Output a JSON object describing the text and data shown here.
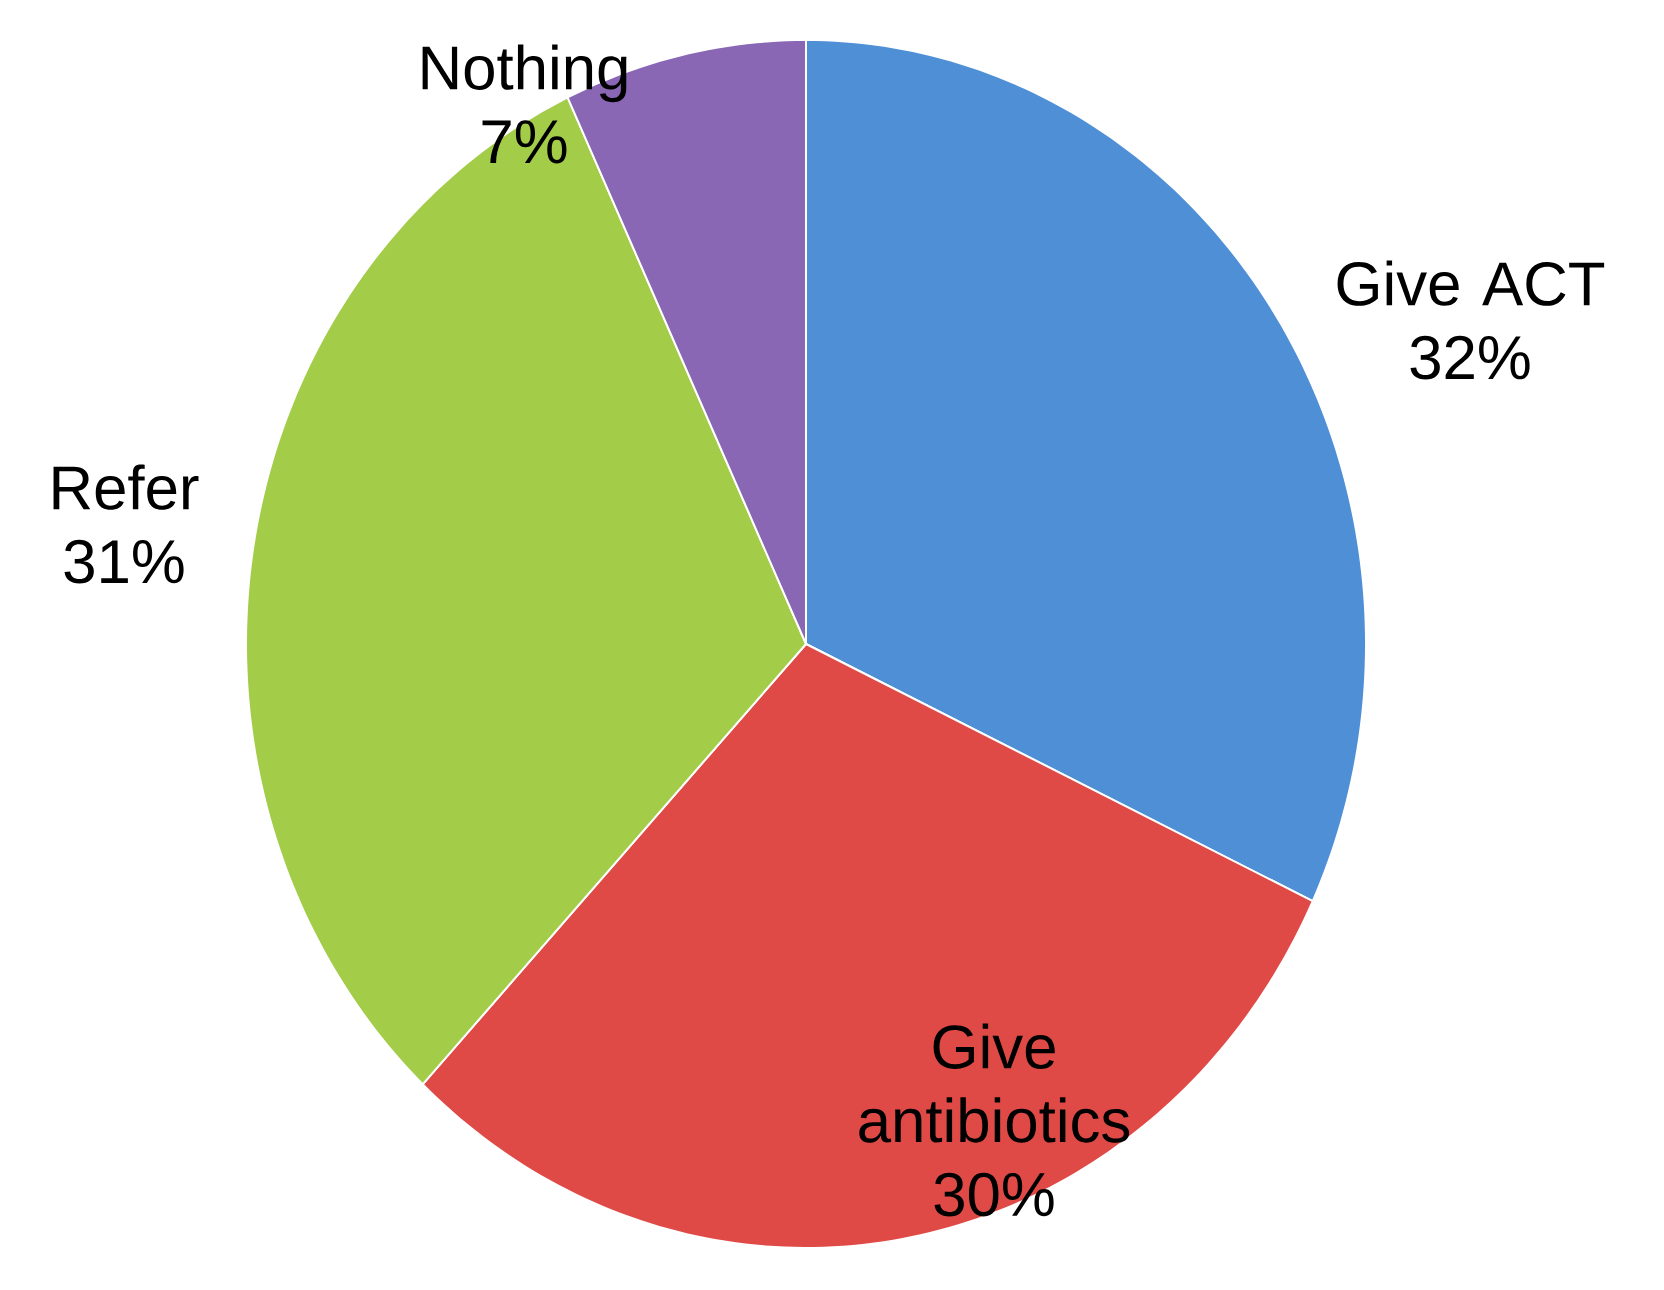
{
  "chart_data": {
    "type": "pie",
    "categories": [
      "Give ACT",
      "Give antibiotics",
      "Refer",
      "Nothing"
    ],
    "values": [
      32,
      30,
      31,
      7
    ],
    "value_labels": [
      "32%",
      "30%",
      "31%",
      "7%"
    ],
    "colors": [
      "#4f8fd6",
      "#e04a46",
      "#a3cc48",
      "#8a67b5"
    ]
  }
}
